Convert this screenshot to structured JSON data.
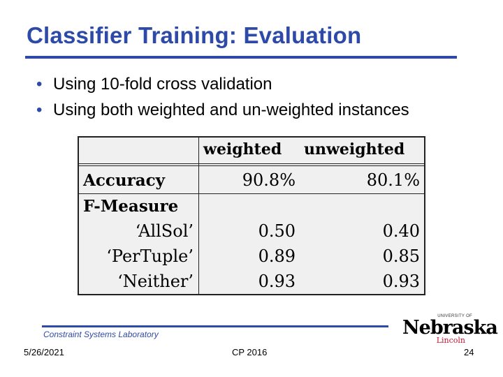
{
  "slide": {
    "title": "Classifier Training: Evaluation",
    "bullets": [
      "Using 10-fold cross validation",
      "Using both weighted and un-weighted instances"
    ]
  },
  "table": {
    "headers": [
      "weighted",
      "unweighted"
    ],
    "accuracy": {
      "label": "Accuracy",
      "weighted": "90.8%",
      "unweighted": "80.1%"
    },
    "fmeasure_label": "F-Measure",
    "fmeasure_rows": [
      {
        "label": "‘AllSol’",
        "weighted": "0.50",
        "unweighted": "0.40"
      },
      {
        "label": "‘PerTuple’",
        "weighted": "0.89",
        "unweighted": "0.85"
      },
      {
        "label": "‘Neither’",
        "weighted": "0.93",
        "unweighted": "0.93"
      }
    ]
  },
  "footer": {
    "lab": "Constraint Systems Laboratory",
    "date": "5/26/2021",
    "conference": "CP 2016",
    "page": "24"
  },
  "logo": {
    "university": "UNIVERSITY OF",
    "name": "Nebraska",
    "campus": "Lincoln"
  },
  "colors": {
    "accent": "#2e4aa8",
    "logo_red": "#c8102e"
  }
}
